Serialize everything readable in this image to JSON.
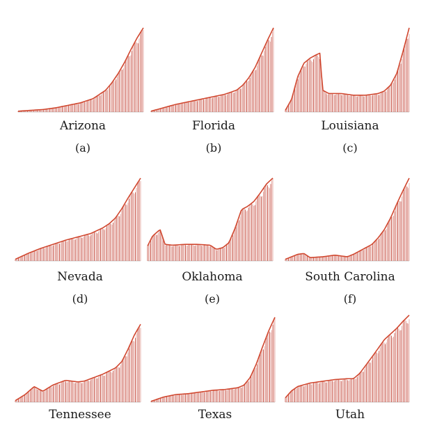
{
  "figure": {
    "bar_color": "#c0392b",
    "line_color": "#d0472f"
  },
  "chart_data": [
    {
      "type": "area",
      "title": "Arizona",
      "sublabel": "(a)",
      "x": [
        0,
        0.1,
        0.2,
        0.3,
        0.4,
        0.5,
        0.6,
        0.7,
        0.75,
        0.8,
        0.85,
        0.9,
        0.95,
        1.0
      ],
      "values": [
        0.01,
        0.02,
        0.03,
        0.05,
        0.08,
        0.11,
        0.16,
        0.26,
        0.35,
        0.46,
        0.59,
        0.74,
        0.88,
        1.0
      ]
    },
    {
      "type": "area",
      "title": "Florida",
      "sublabel": "(b)",
      "x": [
        0,
        0.1,
        0.2,
        0.3,
        0.4,
        0.5,
        0.6,
        0.7,
        0.75,
        0.8,
        0.85,
        0.9,
        0.95,
        1.0
      ],
      "values": [
        0.01,
        0.05,
        0.09,
        0.12,
        0.15,
        0.18,
        0.21,
        0.26,
        0.32,
        0.41,
        0.53,
        0.69,
        0.85,
        1.0
      ]
    },
    {
      "type": "area",
      "title": "Louisiana",
      "sublabel": "(c)",
      "x": [
        0,
        0.05,
        0.1,
        0.15,
        0.2,
        0.25,
        0.28,
        0.3,
        0.35,
        0.45,
        0.55,
        0.65,
        0.75,
        0.8,
        0.85,
        0.9,
        0.95,
        1.0
      ],
      "values": [
        0.02,
        0.15,
        0.42,
        0.58,
        0.64,
        0.68,
        0.7,
        0.26,
        0.22,
        0.22,
        0.2,
        0.2,
        0.22,
        0.25,
        0.32,
        0.46,
        0.72,
        1.0
      ]
    },
    {
      "type": "area",
      "title": "Nevada",
      "sublabel": "(d)",
      "x": [
        0,
        0.1,
        0.2,
        0.3,
        0.4,
        0.5,
        0.6,
        0.7,
        0.75,
        0.8,
        0.85,
        0.9,
        0.95,
        1.0
      ],
      "values": [
        0.02,
        0.09,
        0.15,
        0.2,
        0.25,
        0.29,
        0.33,
        0.4,
        0.45,
        0.52,
        0.63,
        0.76,
        0.88,
        1.0
      ]
    },
    {
      "type": "area",
      "title": "Oklahoma",
      "sublabel": "(e)",
      "x": [
        0,
        0.04,
        0.1,
        0.14,
        0.2,
        0.3,
        0.4,
        0.5,
        0.55,
        0.6,
        0.65,
        0.7,
        0.75,
        0.8,
        0.85,
        0.9,
        0.95,
        1.0
      ],
      "values": [
        0.18,
        0.3,
        0.38,
        0.2,
        0.19,
        0.2,
        0.2,
        0.19,
        0.14,
        0.16,
        0.22,
        0.4,
        0.62,
        0.66,
        0.72,
        0.82,
        0.93,
        1.0
      ]
    },
    {
      "type": "area",
      "title": "South Carolina",
      "sublabel": "(f)",
      "x": [
        0,
        0.05,
        0.1,
        0.15,
        0.2,
        0.3,
        0.4,
        0.5,
        0.55,
        0.6,
        0.7,
        0.75,
        0.8,
        0.85,
        0.9,
        0.95,
        1.0
      ],
      "values": [
        0.02,
        0.05,
        0.08,
        0.09,
        0.04,
        0.05,
        0.07,
        0.05,
        0.08,
        0.12,
        0.2,
        0.28,
        0.38,
        0.52,
        0.69,
        0.85,
        1.0
      ]
    },
    {
      "type": "area",
      "title": "Tennessee",
      "sublabel": "",
      "x": [
        0,
        0.08,
        0.15,
        0.22,
        0.3,
        0.4,
        0.5,
        0.55,
        0.6,
        0.7,
        0.8,
        0.85,
        0.9,
        0.95,
        1.0
      ],
      "values": [
        0.02,
        0.1,
        0.2,
        0.14,
        0.22,
        0.28,
        0.26,
        0.27,
        0.3,
        0.36,
        0.44,
        0.52,
        0.68,
        0.86,
        1.0
      ]
    },
    {
      "type": "area",
      "title": "Texas",
      "sublabel": "",
      "x": [
        0,
        0.1,
        0.2,
        0.3,
        0.4,
        0.5,
        0.6,
        0.7,
        0.75,
        0.8,
        0.85,
        0.9,
        0.95,
        1.0
      ],
      "values": [
        0.01,
        0.06,
        0.09,
        0.1,
        0.12,
        0.14,
        0.15,
        0.17,
        0.2,
        0.29,
        0.45,
        0.65,
        0.84,
        1.0
      ]
    },
    {
      "type": "area",
      "title": "Utah",
      "sublabel": "",
      "x": [
        0,
        0.05,
        0.1,
        0.2,
        0.3,
        0.4,
        0.5,
        0.55,
        0.6,
        0.7,
        0.8,
        0.9,
        0.95,
        1.0
      ],
      "values": [
        0.05,
        0.13,
        0.18,
        0.22,
        0.24,
        0.26,
        0.27,
        0.27,
        0.33,
        0.52,
        0.72,
        0.85,
        0.93,
        1.0
      ]
    }
  ]
}
